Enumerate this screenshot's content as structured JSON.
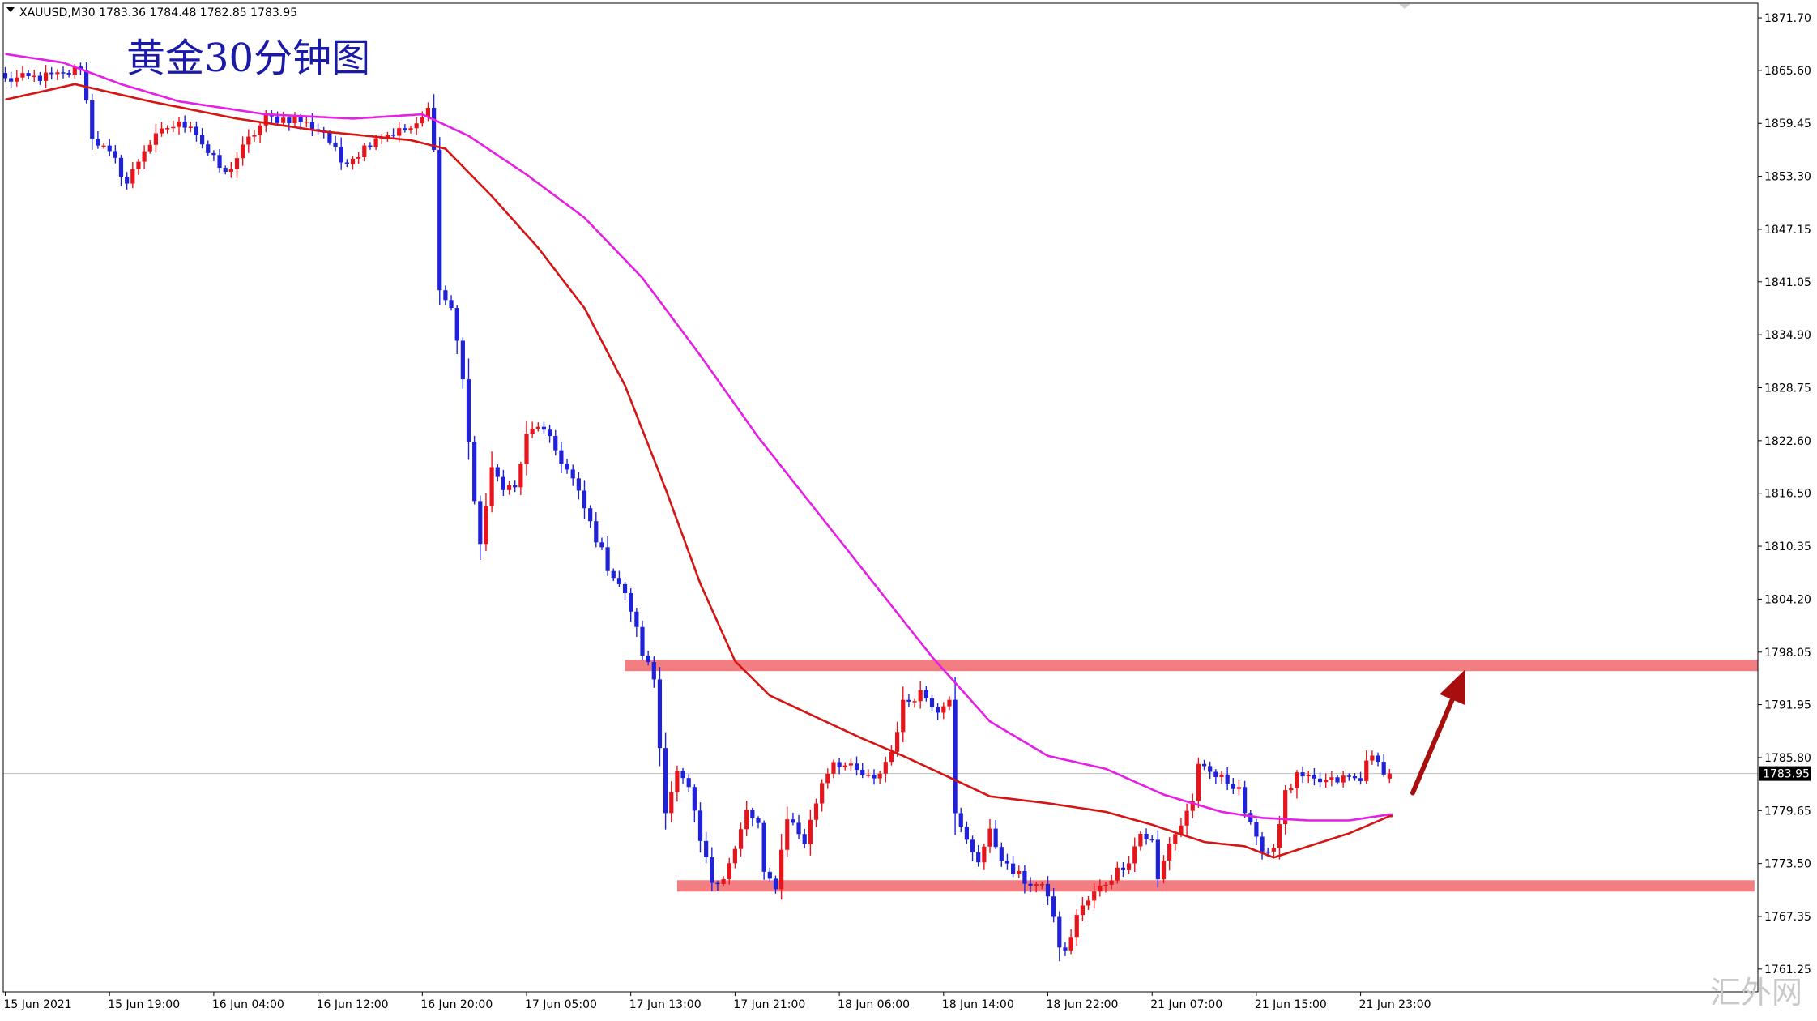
{
  "chart_data": {
    "type": "candlestick",
    "symbol_info": "XAUUSD,M30  1783.36 1784.48 1782.85 1783.95",
    "ohlc": {
      "open": 1783.36,
      "high": 1784.48,
      "low": 1782.85,
      "close": 1783.95
    },
    "title": "黄金30分钟图",
    "watermark": "汇外网",
    "ylim": [
      1758.6,
      1873.4
    ],
    "y_ticks": [
      1871.7,
      1865.6,
      1859.45,
      1853.3,
      1847.15,
      1841.05,
      1834.9,
      1828.75,
      1822.6,
      1816.5,
      1810.35,
      1804.2,
      1798.05,
      1791.95,
      1785.8,
      1779.65,
      1773.5,
      1767.35,
      1761.25
    ],
    "current_price": 1783.95,
    "x_ticks": [
      {
        "label": "15 Jun 2021",
        "bar": 0
      },
      {
        "label": "15 Jun 19:00",
        "bar": 18
      },
      {
        "label": "16 Jun 04:00",
        "bar": 36
      },
      {
        "label": "16 Jun 12:00",
        "bar": 54
      },
      {
        "label": "16 Jun 20:00",
        "bar": 72
      },
      {
        "label": "17 Jun 05:00",
        "bar": 90
      },
      {
        "label": "17 Jun 13:00",
        "bar": 108
      },
      {
        "label": "17 Jun 21:00",
        "bar": 126
      },
      {
        "label": "18 Jun 06:00",
        "bar": 144
      },
      {
        "label": "18 Jun 14:00",
        "bar": 162
      },
      {
        "label": "18 Jun 22:00",
        "bar": 180
      },
      {
        "label": "21 Jun 07:00",
        "bar": 198
      },
      {
        "label": "21 Jun 15:00",
        "bar": 216
      },
      {
        "label": "21 Jun 23:00",
        "bar": 234
      }
    ],
    "bar_count": 240,
    "zones": [
      {
        "price": 1796.5,
        "from_bar": 107,
        "to_bar": 304
      },
      {
        "price": 1770.9,
        "from_bar": 116,
        "to_bar": 302
      }
    ],
    "arrow": {
      "from_bar": 243,
      "from_price": 1781.7,
      "to_bar": 252,
      "to_price": 1796.0
    },
    "colors": {
      "bull": "#e8141c",
      "bear": "#1f22d8",
      "ma_fast": "#d61414",
      "ma_slow": "#e61ee6",
      "zone": "#f37e82",
      "arrow": "#a80e0e"
    },
    "key_points": [
      [
        0,
        1864.5
      ],
      [
        10,
        1865.0
      ],
      [
        13,
        1866.0
      ],
      [
        15,
        1858.0
      ],
      [
        19,
        1855.0
      ],
      [
        21,
        1852.5
      ],
      [
        24,
        1856.5
      ],
      [
        28,
        1859.0
      ],
      [
        32,
        1859.5
      ],
      [
        35,
        1856.0
      ],
      [
        38,
        1853.5
      ],
      [
        42,
        1857.5
      ],
      [
        45,
        1860.0
      ],
      [
        50,
        1860.0
      ],
      [
        55,
        1858.5
      ],
      [
        58,
        1855.0
      ],
      [
        61,
        1856.0
      ],
      [
        64,
        1858.0
      ],
      [
        68,
        1858.5
      ],
      [
        71,
        1859.0
      ],
      [
        73,
        1861.0
      ],
      [
        74,
        1857.0
      ],
      [
        75,
        1840.0
      ],
      [
        77,
        1838.0
      ],
      [
        79,
        1830.0
      ],
      [
        81,
        1815.0
      ],
      [
        82,
        1811.0
      ],
      [
        84,
        1819.0
      ],
      [
        86,
        1817.5
      ],
      [
        88,
        1817.0
      ],
      [
        90,
        1823.0
      ],
      [
        92,
        1824.5
      ],
      [
        95,
        1821.5
      ],
      [
        98,
        1818.0
      ],
      [
        101,
        1813.0
      ],
      [
        104,
        1808.0
      ],
      [
        106,
        1806.0
      ],
      [
        108,
        1803.0
      ],
      [
        110,
        1798.0
      ],
      [
        112,
        1795.0
      ],
      [
        113,
        1787.0
      ],
      [
        114,
        1780.0
      ],
      [
        116,
        1784.0
      ],
      [
        118,
        1782.0
      ],
      [
        120,
        1776.0
      ],
      [
        122,
        1771.5
      ],
      [
        124,
        1772.0
      ],
      [
        126,
        1775.0
      ],
      [
        128,
        1779.5
      ],
      [
        130,
        1778.0
      ],
      [
        131,
        1772.0
      ],
      [
        133,
        1771.0
      ],
      [
        135,
        1779.0
      ],
      [
        138,
        1776.0
      ],
      [
        141,
        1783.0
      ],
      [
        143,
        1785.5
      ],
      [
        146,
        1784.5
      ],
      [
        150,
        1783.0
      ],
      [
        153,
        1786.5
      ],
      [
        155,
        1792.0
      ],
      [
        158,
        1793.5
      ],
      [
        161,
        1791.5
      ],
      [
        163,
        1793.0
      ],
      [
        164,
        1779.0
      ],
      [
        166,
        1776.0
      ],
      [
        168,
        1774.0
      ],
      [
        170,
        1777.0
      ],
      [
        173,
        1773.0
      ],
      [
        176,
        1771.5
      ],
      [
        178,
        1771.0
      ],
      [
        180,
        1770.0
      ],
      [
        182,
        1764.0
      ],
      [
        183,
        1763.0
      ],
      [
        185,
        1767.5
      ],
      [
        188,
        1770.0
      ],
      [
        191,
        1772.0
      ],
      [
        194,
        1774.0
      ],
      [
        196,
        1777.0
      ],
      [
        198,
        1776.0
      ],
      [
        199,
        1771.5
      ],
      [
        201,
        1776.0
      ],
      [
        203,
        1778.0
      ],
      [
        205,
        1781.0
      ],
      [
        206,
        1784.5
      ],
      [
        208,
        1784.0
      ],
      [
        211,
        1783.0
      ],
      [
        213,
        1782.5
      ],
      [
        214,
        1779.5
      ],
      [
        216,
        1776.0
      ],
      [
        218,
        1775.0
      ],
      [
        219,
        1775.5
      ],
      [
        221,
        1781.5
      ],
      [
        223,
        1783.5
      ],
      [
        226,
        1783.0
      ],
      [
        229,
        1783.0
      ],
      [
        232,
        1783.5
      ],
      [
        234,
        1783.0
      ],
      [
        235,
        1786.0
      ],
      [
        237,
        1785.0
      ],
      [
        239,
        1783.9
      ]
    ],
    "ma_fast_points": [
      [
        0,
        1862.2
      ],
      [
        12,
        1864.0
      ],
      [
        25,
        1862.0
      ],
      [
        40,
        1860.0
      ],
      [
        55,
        1858.5
      ],
      [
        70,
        1857.5
      ],
      [
        76,
        1856.5
      ],
      [
        84,
        1851.0
      ],
      [
        92,
        1845.0
      ],
      [
        100,
        1838.0
      ],
      [
        107,
        1829.0
      ],
      [
        114,
        1817.0
      ],
      [
        120,
        1806.0
      ],
      [
        126,
        1797.0
      ],
      [
        132,
        1793.0
      ],
      [
        140,
        1790.5
      ],
      [
        148,
        1788.0
      ],
      [
        155,
        1786.0
      ],
      [
        163,
        1783.5
      ],
      [
        170,
        1781.3
      ],
      [
        180,
        1780.5
      ],
      [
        190,
        1779.5
      ],
      [
        198,
        1778.0
      ],
      [
        207,
        1776.0
      ],
      [
        214,
        1775.5
      ],
      [
        219,
        1774.2
      ],
      [
        225,
        1775.5
      ],
      [
        232,
        1777.0
      ],
      [
        239,
        1779.0
      ]
    ],
    "ma_slow_points": [
      [
        0,
        1867.5
      ],
      [
        10,
        1866.5
      ],
      [
        20,
        1864.0
      ],
      [
        30,
        1862.0
      ],
      [
        45,
        1860.5
      ],
      [
        60,
        1860.0
      ],
      [
        72,
        1860.5
      ],
      [
        80,
        1858.0
      ],
      [
        90,
        1853.5
      ],
      [
        100,
        1848.5
      ],
      [
        110,
        1841.5
      ],
      [
        120,
        1832.5
      ],
      [
        130,
        1823.0
      ],
      [
        140,
        1814.5
      ],
      [
        150,
        1806.0
      ],
      [
        160,
        1797.5
      ],
      [
        170,
        1790.0
      ],
      [
        180,
        1786.0
      ],
      [
        190,
        1784.5
      ],
      [
        200,
        1781.5
      ],
      [
        210,
        1779.5
      ],
      [
        217,
        1778.8
      ],
      [
        225,
        1778.5
      ],
      [
        232,
        1778.5
      ],
      [
        239,
        1779.2
      ]
    ]
  }
}
